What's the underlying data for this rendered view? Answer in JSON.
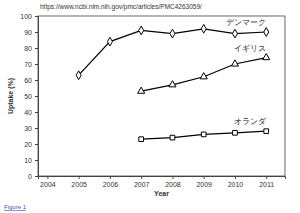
{
  "chart_data": {
    "type": "line",
    "annotations": [
      "https://www.ncbi.nlm.nih.gov/pmc/articles/PMC4263059/",
      "Figure 1"
    ],
    "x_label": "Year",
    "y_label": "Uptake (%)",
    "x": [
      2005,
      2006,
      2007,
      2008,
      2009,
      2010,
      2011
    ],
    "series": [
      {
        "name": "デンマーク",
        "color": "#000000",
        "marker": "diamond",
        "values": [
          63,
          84,
          91,
          89,
          92,
          89,
          90
        ]
      },
      {
        "name": "イギリス",
        "color": "#000000",
        "marker": "triangle",
        "values": [
          null,
          null,
          53,
          57,
          62,
          70,
          74
        ]
      },
      {
        "name": "オランダ",
        "color": "#000000",
        "marker": "square",
        "values": [
          null,
          null,
          23,
          24,
          26,
          27,
          28
        ]
      }
    ],
    "xlim": [
      2003.7,
      2011.6
    ],
    "xticks": [
      2004,
      2005,
      2006,
      2007,
      2008,
      2009,
      2010,
      2011
    ],
    "ylim": [
      0,
      100
    ],
    "yticks": [
      0,
      10,
      20,
      30,
      40,
      50,
      60,
      70,
      80,
      90,
      100
    ],
    "grid": false
  }
}
